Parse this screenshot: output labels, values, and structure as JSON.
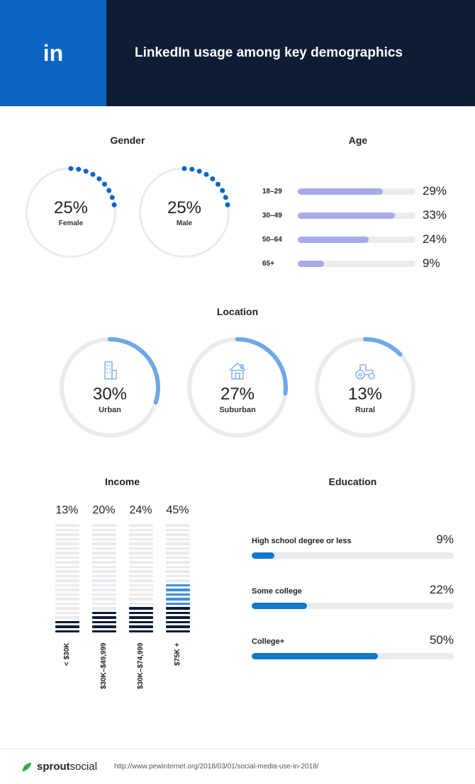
{
  "colors": {
    "brand_blue": "#0a66c2",
    "dark_navy": "#0e1d35",
    "ring_bg": "#e9ebee",
    "bar_bg": "#e9ebee",
    "dot_color": "#0a66c2",
    "age_fill": "#a9a9e8",
    "loc_arc": "#6ea8e8",
    "edu_fill": "#1178c9",
    "income_dark": "#0e1d35",
    "income_mid": "#3e8fd6",
    "income_light": "#e9ebee",
    "leaf_green": "#3fb65e",
    "leaf_dark": "#1a8a3a"
  },
  "header": {
    "title": "LinkedIn usage among key demographics",
    "icon_text": "in"
  },
  "gender": {
    "title": "Gender",
    "items": [
      {
        "label": "Female",
        "pct": 25
      },
      {
        "label": "Male",
        "pct": 25
      }
    ],
    "total_dots": 36
  },
  "age": {
    "title": "Age",
    "max_scale": 40,
    "items": [
      {
        "label": "18–29",
        "pct": 29
      },
      {
        "label": "30–49",
        "pct": 33
      },
      {
        "label": "50–64",
        "pct": 24
      },
      {
        "label": "65+",
        "pct": 9
      }
    ]
  },
  "location": {
    "title": "Location",
    "items": [
      {
        "label": "Urban",
        "pct": 30,
        "icon": "building"
      },
      {
        "label": "Suburban",
        "pct": 27,
        "icon": "house"
      },
      {
        "label": "Rural",
        "pct": 13,
        "icon": "tractor"
      }
    ]
  },
  "income": {
    "title": "Income",
    "total_segments": 24,
    "items": [
      {
        "label": "< $30K",
        "pct": 13,
        "dark": 3,
        "mid": 0
      },
      {
        "label": "$30K–$49,999",
        "pct": 20,
        "dark": 5,
        "mid": 0
      },
      {
        "label": "$30K–$74,999",
        "pct": 24,
        "dark": 6,
        "mid": 0
      },
      {
        "label": "$75K +",
        "pct": 45,
        "dark": 6,
        "mid": 5
      }
    ]
  },
  "education": {
    "title": "Education",
    "max_scale": 80,
    "items": [
      {
        "label": "High school degree or less",
        "pct": 9
      },
      {
        "label": "Some college",
        "pct": 22
      },
      {
        "label": "College+",
        "pct": 50
      }
    ]
  },
  "footer": {
    "brand_bold": "sprout",
    "brand_rest": "social",
    "source": "http://www.pewinternet.org/2018/03/01/social-media-use-in-2018/"
  }
}
